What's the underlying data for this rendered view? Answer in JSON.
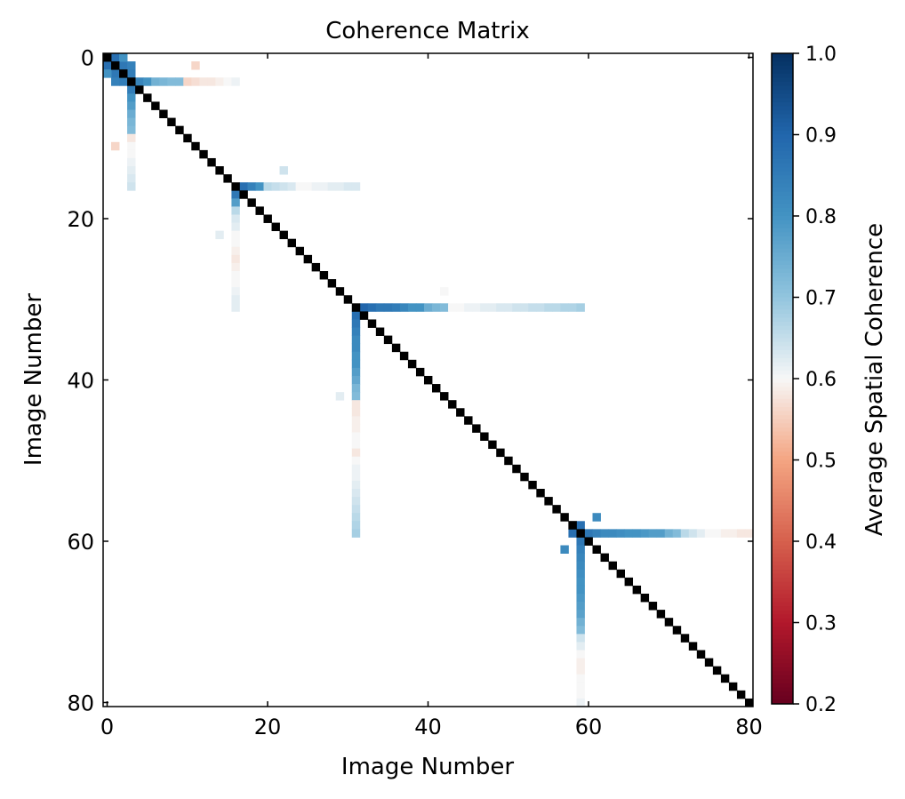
{
  "chart_data": {
    "type": "heatmap",
    "title": "Coherence Matrix",
    "xlabel": "Image Number",
    "ylabel": "Image Number",
    "colorbar_label": "Average Spatial Coherence",
    "size": 81,
    "x_ticks": [
      0,
      20,
      40,
      60,
      80
    ],
    "y_ticks": [
      0,
      20,
      40,
      60,
      80
    ],
    "colorbar_range": [
      0.2,
      1.0
    ],
    "colorbar_ticks": [
      "0.2",
      "0.3",
      "0.4",
      "0.5",
      "0.6",
      "0.7",
      "0.8",
      "0.9",
      "1.0"
    ],
    "colormap": "RdBu",
    "diagonal_value": 1.0,
    "hubs": [
      {
        "index": 3,
        "row_values": [
          {
            "col": 4,
            "value": 0.83
          },
          {
            "col": 5,
            "value": 0.8
          },
          {
            "col": 6,
            "value": 0.74
          },
          {
            "col": 7,
            "value": 0.73
          },
          {
            "col": 8,
            "value": 0.72
          },
          {
            "col": 9,
            "value": 0.72
          },
          {
            "col": 10,
            "value": 0.56
          },
          {
            "col": 11,
            "value": 0.57
          },
          {
            "col": 12,
            "value": 0.58
          },
          {
            "col": 13,
            "value": 0.58
          },
          {
            "col": 14,
            "value": 0.59
          },
          {
            "col": 15,
            "value": 0.6
          },
          {
            "col": 16,
            "value": 0.61
          }
        ],
        "col_values": [
          {
            "row": 4,
            "value": 0.85
          },
          {
            "row": 5,
            "value": 0.8
          },
          {
            "row": 6,
            "value": 0.78
          },
          {
            "row": 7,
            "value": 0.75
          },
          {
            "row": 8,
            "value": 0.73
          },
          {
            "row": 9,
            "value": 0.72
          },
          {
            "row": 10,
            "value": 0.58
          },
          {
            "row": 11,
            "value": 0.6
          },
          {
            "row": 12,
            "value": 0.6
          },
          {
            "row": 13,
            "value": 0.61
          },
          {
            "row": 14,
            "value": 0.62
          },
          {
            "row": 15,
            "value": 0.63
          },
          {
            "row": 16,
            "value": 0.64
          }
        ]
      },
      {
        "index": 16,
        "row_values": [
          {
            "col": 17,
            "value": 0.88
          },
          {
            "col": 18,
            "value": 0.84
          },
          {
            "col": 19,
            "value": 0.8
          },
          {
            "col": 20,
            "value": 0.66
          },
          {
            "col": 21,
            "value": 0.65
          },
          {
            "col": 22,
            "value": 0.64
          },
          {
            "col": 23,
            "value": 0.63
          },
          {
            "col": 24,
            "value": 0.6
          },
          {
            "col": 25,
            "value": 0.6
          },
          {
            "col": 26,
            "value": 0.61
          },
          {
            "col": 27,
            "value": 0.61
          },
          {
            "col": 28,
            "value": 0.62
          },
          {
            "col": 29,
            "value": 0.62
          },
          {
            "col": 30,
            "value": 0.63
          },
          {
            "col": 31,
            "value": 0.63
          }
        ],
        "col_values": [
          {
            "row": 17,
            "value": 0.86
          },
          {
            "row": 18,
            "value": 0.78
          },
          {
            "row": 19,
            "value": 0.66
          },
          {
            "row": 20,
            "value": 0.63
          },
          {
            "row": 21,
            "value": 0.62
          },
          {
            "row": 22,
            "value": 0.6
          },
          {
            "row": 23,
            "value": 0.6
          },
          {
            "row": 24,
            "value": 0.59
          },
          {
            "row": 25,
            "value": 0.58
          },
          {
            "row": 26,
            "value": 0.59
          },
          {
            "row": 27,
            "value": 0.6
          },
          {
            "row": 28,
            "value": 0.6
          },
          {
            "row": 29,
            "value": 0.61
          },
          {
            "row": 30,
            "value": 0.62
          },
          {
            "row": 31,
            "value": 0.62
          }
        ]
      },
      {
        "index": 31,
        "row_values": [
          {
            "col": 32,
            "value": 0.9
          },
          {
            "col": 33,
            "value": 0.88
          },
          {
            "col": 34,
            "value": 0.86
          },
          {
            "col": 35,
            "value": 0.86
          },
          {
            "col": 36,
            "value": 0.85
          },
          {
            "col": 37,
            "value": 0.83
          },
          {
            "col": 38,
            "value": 0.8
          },
          {
            "col": 39,
            "value": 0.8
          },
          {
            "col": 40,
            "value": 0.75
          },
          {
            "col": 41,
            "value": 0.73
          },
          {
            "col": 42,
            "value": 0.72
          },
          {
            "col": 43,
            "value": 0.6
          },
          {
            "col": 44,
            "value": 0.6
          },
          {
            "col": 45,
            "value": 0.61
          },
          {
            "col": 46,
            "value": 0.61
          },
          {
            "col": 47,
            "value": 0.62
          },
          {
            "col": 48,
            "value": 0.62
          },
          {
            "col": 49,
            "value": 0.63
          },
          {
            "col": 50,
            "value": 0.63
          },
          {
            "col": 51,
            "value": 0.64
          },
          {
            "col": 52,
            "value": 0.64
          },
          {
            "col": 53,
            "value": 0.65
          },
          {
            "col": 54,
            "value": 0.65
          },
          {
            "col": 55,
            "value": 0.66
          },
          {
            "col": 56,
            "value": 0.66
          },
          {
            "col": 57,
            "value": 0.67
          },
          {
            "col": 58,
            "value": 0.67
          },
          {
            "col": 59,
            "value": 0.68
          }
        ],
        "col_values": [
          {
            "row": 32,
            "value": 0.88
          },
          {
            "row": 33,
            "value": 0.86
          },
          {
            "row": 34,
            "value": 0.84
          },
          {
            "row": 35,
            "value": 0.82
          },
          {
            "row": 36,
            "value": 0.82
          },
          {
            "row": 37,
            "value": 0.8
          },
          {
            "row": 38,
            "value": 0.8
          },
          {
            "row": 39,
            "value": 0.78
          },
          {
            "row": 40,
            "value": 0.76
          },
          {
            "row": 41,
            "value": 0.73
          },
          {
            "row": 42,
            "value": 0.72
          },
          {
            "row": 43,
            "value": 0.58
          },
          {
            "row": 44,
            "value": 0.58
          },
          {
            "row": 45,
            "value": 0.59
          },
          {
            "row": 46,
            "value": 0.59
          },
          {
            "row": 47,
            "value": 0.6
          },
          {
            "row": 48,
            "value": 0.6
          },
          {
            "row": 49,
            "value": 0.58
          },
          {
            "row": 50,
            "value": 0.6
          },
          {
            "row": 51,
            "value": 0.61
          },
          {
            "row": 52,
            "value": 0.61
          },
          {
            "row": 53,
            "value": 0.62
          },
          {
            "row": 54,
            "value": 0.63
          },
          {
            "row": 55,
            "value": 0.64
          },
          {
            "row": 56,
            "value": 0.65
          },
          {
            "row": 57,
            "value": 0.66
          },
          {
            "row": 58,
            "value": 0.67
          },
          {
            "row": 59,
            "value": 0.68
          }
        ]
      },
      {
        "index": 59,
        "row_values": [
          {
            "col": 60,
            "value": 0.86
          },
          {
            "col": 61,
            "value": 0.84
          },
          {
            "col": 62,
            "value": 0.82
          },
          {
            "col": 63,
            "value": 0.82
          },
          {
            "col": 64,
            "value": 0.81
          },
          {
            "col": 65,
            "value": 0.8
          },
          {
            "col": 66,
            "value": 0.8
          },
          {
            "col": 67,
            "value": 0.79
          },
          {
            "col": 68,
            "value": 0.78
          },
          {
            "col": 69,
            "value": 0.78
          },
          {
            "col": 70,
            "value": 0.74
          },
          {
            "col": 71,
            "value": 0.72
          },
          {
            "col": 72,
            "value": 0.66
          },
          {
            "col": 73,
            "value": 0.64
          },
          {
            "col": 74,
            "value": 0.62
          },
          {
            "col": 75,
            "value": 0.6
          },
          {
            "col": 76,
            "value": 0.6
          },
          {
            "col": 77,
            "value": 0.59
          },
          {
            "col": 78,
            "value": 0.59
          },
          {
            "col": 79,
            "value": 0.58
          },
          {
            "col": 80,
            "value": 0.58
          }
        ],
        "col_values": [
          {
            "row": 60,
            "value": 0.86
          },
          {
            "row": 61,
            "value": 0.84
          },
          {
            "row": 62,
            "value": 0.83
          },
          {
            "row": 63,
            "value": 0.82
          },
          {
            "row": 64,
            "value": 0.81
          },
          {
            "row": 65,
            "value": 0.8
          },
          {
            "row": 66,
            "value": 0.8
          },
          {
            "row": 67,
            "value": 0.79
          },
          {
            "row": 68,
            "value": 0.78
          },
          {
            "row": 69,
            "value": 0.77
          },
          {
            "row": 70,
            "value": 0.74
          },
          {
            "row": 71,
            "value": 0.72
          },
          {
            "row": 72,
            "value": 0.64
          },
          {
            "row": 73,
            "value": 0.62
          },
          {
            "row": 74,
            "value": 0.6
          },
          {
            "row": 75,
            "value": 0.59
          },
          {
            "row": 76,
            "value": 0.59
          },
          {
            "row": 77,
            "value": 0.6
          },
          {
            "row": 78,
            "value": 0.6
          },
          {
            "row": 79,
            "value": 0.6
          },
          {
            "row": 80,
            "value": 0.61
          }
        ]
      }
    ],
    "cells": [
      {
        "row": 0,
        "col": 1,
        "value": 0.88
      },
      {
        "row": 1,
        "col": 0,
        "value": 0.88
      },
      {
        "row": 1,
        "col": 2,
        "value": 0.86
      },
      {
        "row": 2,
        "col": 1,
        "value": 0.86
      },
      {
        "row": 1,
        "col": 3,
        "value": 0.84
      },
      {
        "row": 2,
        "col": 3,
        "value": 0.85
      },
      {
        "row": 3,
        "col": 1,
        "value": 0.84
      },
      {
        "row": 3,
        "col": 2,
        "value": 0.85
      },
      {
        "row": 0,
        "col": 2,
        "value": 0.8
      },
      {
        "row": 2,
        "col": 0,
        "value": 0.8
      },
      {
        "row": 1,
        "col": 11,
        "value": 0.56
      },
      {
        "row": 11,
        "col": 1,
        "value": 0.56
      },
      {
        "row": 14,
        "col": 22,
        "value": 0.64
      },
      {
        "row": 22,
        "col": 14,
        "value": 0.62
      },
      {
        "row": 29,
        "col": 42,
        "value": 0.6
      },
      {
        "row": 42,
        "col": 29,
        "value": 0.62
      },
      {
        "row": 57,
        "col": 61,
        "value": 0.82
      },
      {
        "row": 61,
        "col": 57,
        "value": 0.82
      },
      {
        "row": 58,
        "col": 58,
        "value": 1.0
      },
      {
        "row": 58,
        "col": 59,
        "value": 0.88
      },
      {
        "row": 59,
        "col": 58,
        "value": 0.88
      }
    ]
  }
}
